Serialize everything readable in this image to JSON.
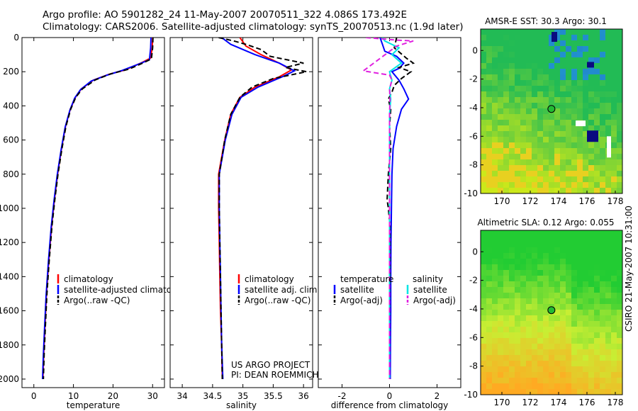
{
  "header": {
    "line1": "Argo profile: AO 5901282_24 11-May-2007 20070511_322 4.086S 173.492E",
    "line2": "Climatology: CARS2006. Satellite-adjusted climatology: synTS_20070513.nc (1.9d later)"
  },
  "side_label": "CSIRO 21-May-2007 10:31:00",
  "colors": {
    "red": "#ff0000",
    "blue": "#0000ff",
    "black": "#000000",
    "cyan": "#00e5e5",
    "magenta": "#e020e0"
  },
  "chart_data": [
    {
      "type": "line",
      "xlabel": "temperature",
      "ylabel": "",
      "xlim": [
        -3,
        33
      ],
      "ylim": [
        2050,
        0
      ],
      "xticks": [
        0,
        10,
        20,
        30
      ],
      "yticks": [
        0,
        200,
        400,
        600,
        800,
        1000,
        1200,
        1400,
        1600,
        1800,
        2000
      ],
      "legend": [
        {
          "label": "climatology",
          "color": "red",
          "dash": false
        },
        {
          "label": "satellite-adjusted climatology",
          "color": "blue",
          "dash": false
        },
        {
          "label": "Argo(..raw -QC)",
          "color": "black",
          "dash": true
        }
      ],
      "series": [
        {
          "name": "climatology",
          "color": "red",
          "dash": false,
          "points": [
            [
              30.0,
              0
            ],
            [
              29.9,
              60
            ],
            [
              29.5,
              120
            ],
            [
              27,
              150
            ],
            [
              23,
              190
            ],
            [
              19,
              215
            ],
            [
              15,
              250
            ],
            [
              12,
              300
            ],
            [
              10.5,
              350
            ],
            [
              9.2,
              420
            ],
            [
              8.0,
              520
            ],
            [
              7.0,
              650
            ],
            [
              6.0,
              800
            ],
            [
              5.2,
              950
            ],
            [
              4.5,
              1100
            ],
            [
              3.8,
              1300
            ],
            [
              3.2,
              1500
            ],
            [
              2.8,
              1700
            ],
            [
              2.5,
              1850
            ],
            [
              2.3,
              2000
            ]
          ]
        },
        {
          "name": "satellite-adjusted climatology",
          "color": "blue",
          "dash": false,
          "points": [
            [
              29.6,
              0
            ],
            [
              29.5,
              60
            ],
            [
              29.2,
              130
            ],
            [
              26.5,
              155
            ],
            [
              22,
              195
            ],
            [
              18.5,
              220
            ],
            [
              14.5,
              255
            ],
            [
              11.8,
              305
            ],
            [
              10.3,
              355
            ],
            [
              9.1,
              425
            ],
            [
              7.9,
              525
            ],
            [
              6.9,
              655
            ],
            [
              5.9,
              805
            ],
            [
              5.1,
              955
            ],
            [
              4.4,
              1105
            ],
            [
              3.7,
              1305
            ],
            [
              3.1,
              1505
            ],
            [
              2.7,
              1705
            ],
            [
              2.4,
              1855
            ],
            [
              2.2,
              2000
            ]
          ]
        },
        {
          "name": "Argo(..raw -QC)",
          "color": "black",
          "dash": true,
          "points": [
            [
              30.1,
              0
            ],
            [
              30.0,
              60
            ],
            [
              29.7,
              125
            ],
            [
              27.5,
              150
            ],
            [
              24,
              185
            ],
            [
              19.5,
              212
            ],
            [
              15.5,
              248
            ],
            [
              12.3,
              300
            ],
            [
              10.6,
              350
            ],
            [
              9.3,
              420
            ],
            [
              8.1,
              520
            ],
            [
              7.1,
              650
            ],
            [
              6.1,
              800
            ],
            [
              5.3,
              950
            ],
            [
              4.6,
              1100
            ],
            [
              3.9,
              1300
            ],
            [
              3.3,
              1500
            ],
            [
              2.9,
              1700
            ],
            [
              2.6,
              1850
            ],
            [
              2.4,
              2000
            ]
          ]
        }
      ]
    },
    {
      "type": "line",
      "xlabel": "salinity",
      "xlim": [
        33.8,
        36.15
      ],
      "ylim": [
        2050,
        0
      ],
      "xticks": [
        34,
        34.5,
        35,
        35.5,
        36
      ],
      "yticks": [
        0,
        200,
        400,
        600,
        800,
        1000,
        1200,
        1400,
        1600,
        1800,
        2000
      ],
      "legend": [
        {
          "label": "climatology",
          "color": "red",
          "dash": false
        },
        {
          "label": "satellite adj. clim.",
          "color": "blue",
          "dash": false
        },
        {
          "label": "Argo(..raw -QC)",
          "color": "black",
          "dash": true
        }
      ],
      "annotation": [
        "US ARGO PROJECT",
        "PI: DEAN ROEMMICH"
      ],
      "series": [
        {
          "name": "climatology",
          "color": "red",
          "dash": false,
          "points": [
            [
              34.95,
              0
            ],
            [
              35.05,
              50
            ],
            [
              35.3,
              100
            ],
            [
              35.6,
              150
            ],
            [
              35.8,
              190
            ],
            [
              35.6,
              230
            ],
            [
              35.2,
              290
            ],
            [
              34.95,
              350
            ],
            [
              34.8,
              450
            ],
            [
              34.7,
              600
            ],
            [
              34.6,
              800
            ],
            [
              34.6,
              1000
            ],
            [
              34.61,
              1200
            ],
            [
              34.62,
              1400
            ],
            [
              34.63,
              1600
            ],
            [
              34.65,
              1800
            ],
            [
              34.66,
              2000
            ]
          ]
        },
        {
          "name": "satellite adj. clim.",
          "color": "blue",
          "dash": false,
          "points": [
            [
              34.65,
              0
            ],
            [
              34.8,
              40
            ],
            [
              35.2,
              100
            ],
            [
              35.6,
              150
            ],
            [
              35.85,
              195
            ],
            [
              35.65,
              230
            ],
            [
              35.25,
              290
            ],
            [
              34.97,
              350
            ],
            [
              34.82,
              450
            ],
            [
              34.71,
              600
            ],
            [
              34.61,
              800
            ],
            [
              34.61,
              1000
            ],
            [
              34.62,
              1200
            ],
            [
              34.63,
              1400
            ],
            [
              34.64,
              1600
            ],
            [
              34.65,
              1800
            ],
            [
              34.67,
              2000
            ]
          ]
        },
        {
          "name": "Argo(..raw -QC)",
          "color": "black",
          "dash": true,
          "points": [
            [
              34.6,
              0
            ],
            [
              34.85,
              20
            ],
            [
              35.05,
              40
            ],
            [
              35.3,
              70
            ],
            [
              35.45,
              110
            ],
            [
              36.0,
              150
            ],
            [
              35.7,
              175
            ],
            [
              36.05,
              200
            ],
            [
              35.5,
              240
            ],
            [
              35.15,
              290
            ],
            [
              34.95,
              350
            ],
            [
              34.8,
              450
            ],
            [
              34.7,
              600
            ],
            [
              34.61,
              800
            ],
            [
              34.61,
              1000
            ],
            [
              34.62,
              1200
            ],
            [
              34.63,
              1400
            ],
            [
              34.64,
              1600
            ],
            [
              34.65,
              1800
            ],
            [
              34.66,
              2000
            ]
          ]
        }
      ]
    },
    {
      "type": "line",
      "xlabel": "difference from climatology",
      "xlim": [
        -3,
        3
      ],
      "ylim": [
        2050,
        0
      ],
      "xticks": [
        -2,
        0,
        2
      ],
      "yticks": [
        0,
        200,
        400,
        600,
        800,
        1000,
        1200,
        1400,
        1600,
        1800,
        2000
      ],
      "legend_temperature_title": "temperature",
      "legend_salinity_title": "salinity",
      "legend": [
        {
          "label": "satellite",
          "color": "blue",
          "dash": false
        },
        {
          "label": "Argo(-adj)",
          "color": "black",
          "dash": true
        },
        {
          "label": "satellite",
          "color": "cyan",
          "dash": false
        },
        {
          "label": "Argo(-adj)",
          "color": "magenta",
          "dash": true
        }
      ],
      "series": [
        {
          "name": "temperature satellite",
          "color": "blue",
          "dash": false,
          "points": [
            [
              -0.4,
              0
            ],
            [
              -0.3,
              40
            ],
            [
              -0.2,
              80
            ],
            [
              0.3,
              110
            ],
            [
              0.6,
              150
            ],
            [
              0.4,
              180
            ],
            [
              0.1,
              200
            ],
            [
              0.4,
              250
            ],
            [
              0.6,
              300
            ],
            [
              0.8,
              360
            ],
            [
              0.5,
              420
            ],
            [
              0.3,
              520
            ],
            [
              0.15,
              650
            ],
            [
              0.1,
              800
            ],
            [
              0.08,
              1000
            ],
            [
              0.06,
              1200
            ],
            [
              0.05,
              1400
            ],
            [
              0.05,
              1600
            ],
            [
              0.04,
              1800
            ],
            [
              0.03,
              2000
            ]
          ]
        },
        {
          "name": "temperature Argo(-adj)",
          "color": "black",
          "dash": true,
          "points": [
            [
              0.3,
              0
            ],
            [
              0.2,
              60
            ],
            [
              0.7,
              120
            ],
            [
              1.0,
              150
            ],
            [
              0.4,
              175
            ],
            [
              0.9,
              200
            ],
            [
              0.5,
              240
            ],
            [
              0.2,
              280
            ],
            [
              0.1,
              320
            ],
            [
              -0.05,
              360
            ],
            [
              0.05,
              420
            ],
            [
              0.0,
              520
            ],
            [
              0.05,
              650
            ],
            [
              -0.05,
              800
            ],
            [
              -0.1,
              950
            ],
            [
              -0.05,
              1000
            ],
            [
              0.02,
              1100
            ],
            [
              0.02,
              1300
            ],
            [
              0.01,
              1500
            ],
            [
              0.0,
              2000
            ]
          ]
        },
        {
          "name": "salinity satellite",
          "color": "cyan",
          "dash": false,
          "points": [
            [
              -0.3,
              0
            ],
            [
              -0.2,
              20
            ],
            [
              0.4,
              60
            ],
            [
              0.1,
              100
            ],
            [
              0.5,
              150
            ],
            [
              0.0,
              200
            ],
            [
              0.1,
              250
            ],
            [
              0.0,
              300
            ],
            [
              0.05,
              360
            ],
            [
              0.0,
              450
            ],
            [
              0.0,
              600
            ],
            [
              0.0,
              800
            ],
            [
              0.0,
              1000
            ],
            [
              0.0,
              1400
            ],
            [
              0.0,
              2000
            ]
          ]
        },
        {
          "name": "salinity Argo(-adj)",
          "color": "magenta",
          "dash": true,
          "points": [
            [
              -1.0,
              0
            ],
            [
              0.3,
              15
            ],
            [
              1.0,
              20
            ],
            [
              0.3,
              50
            ],
            [
              -1.1,
              195
            ],
            [
              0.0,
              220
            ],
            [
              0.1,
              250
            ],
            [
              0.0,
              300
            ],
            [
              0.02,
              360
            ],
            [
              0.0,
              450
            ],
            [
              0.0,
              600
            ],
            [
              0.0,
              800
            ],
            [
              0.0,
              1000
            ],
            [
              0.0,
              1400
            ],
            [
              0.0,
              2000
            ]
          ]
        }
      ]
    },
    {
      "type": "heatmap",
      "title": "AMSR-E SST: 30.3 Argo: 30.1",
      "xlim": [
        168.5,
        178.5
      ],
      "ylim": [
        -10,
        1.5
      ],
      "xticks": [
        170,
        172,
        174,
        176,
        178
      ],
      "yticks": [
        0,
        -2,
        -4,
        -6,
        -8,
        -10
      ],
      "marker": [
        173.492,
        -4.086
      ],
      "palette": "sst"
    },
    {
      "type": "heatmap",
      "title": "Altimetric SLA: 0.12 Argo: 0.055",
      "xlim": [
        168.5,
        178.5
      ],
      "ylim": [
        -10,
        1.5
      ],
      "xticks": [
        170,
        172,
        174,
        176,
        178
      ],
      "yticks": [
        0,
        -2,
        -4,
        -6,
        -8,
        -10
      ],
      "marker": [
        173.492,
        -4.086
      ],
      "palette": "sla"
    }
  ]
}
